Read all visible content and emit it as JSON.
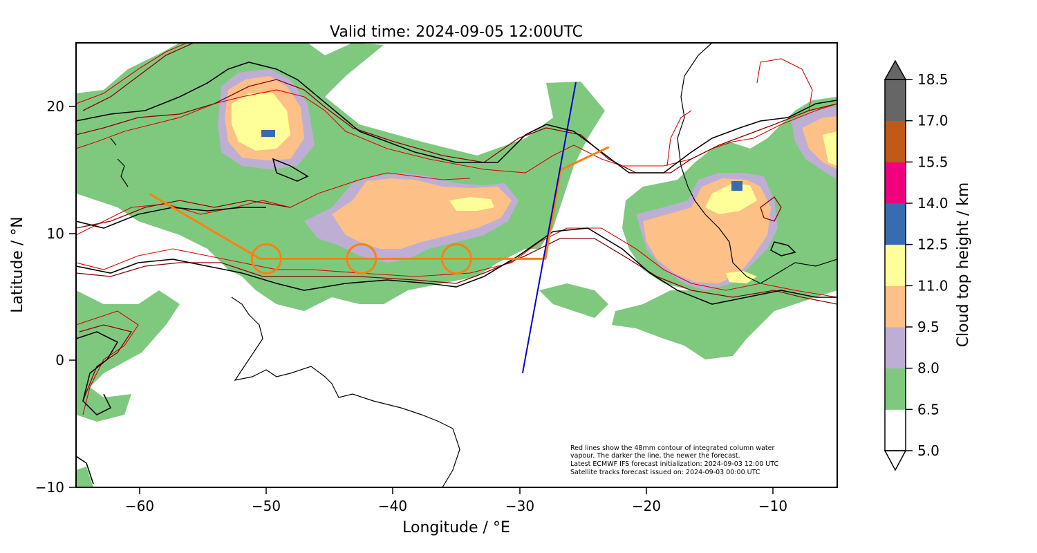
{
  "title": "Valid time: 2024-09-05 12:00UTC",
  "x_axis": {
    "label": "Longitude / °E",
    "range": [
      -65,
      -5
    ],
    "ticks": [
      -60,
      -50,
      -40,
      -30,
      -20,
      -10
    ],
    "tick_labels": [
      "−60",
      "−50",
      "−40",
      "−30",
      "−20",
      "−10"
    ]
  },
  "y_axis": {
    "label": "Latitude / °N",
    "range": [
      -10,
      25
    ],
    "ticks": [
      -10,
      0,
      10,
      20
    ],
    "tick_labels": [
      "−10",
      "0",
      "10",
      "20"
    ]
  },
  "colorbar": {
    "label": "Cloud top height / km",
    "levels": [
      "5.0",
      "6.5",
      "8.0",
      "9.5",
      "11.0",
      "12.5",
      "14.0",
      "15.5",
      "17.0",
      "18.5"
    ],
    "colors": [
      "#ffffff",
      "#7fc97f",
      "#beaed4",
      "#fdc086",
      "#ffff99",
      "#386cb0",
      "#f0027f",
      "#bf5b17",
      "#666666"
    ],
    "extend": "both"
  },
  "annotation": [
    "Red lines show the 48mm contour of integrated column water",
    "vapour. The darker the line, the newer the forecast.",
    "Latest ECMWF IFS forecast initialization: 2024-09-03 12:00 UTC",
    "Satellite tracks forecast issued on: 2024-09-03 00:00 UTC"
  ],
  "flight_track": {
    "color": "#ff7f0e",
    "path": [
      [
        -59.2,
        13.1
      ],
      [
        -50.5,
        8.0
      ],
      [
        -28.0,
        8.0
      ],
      [
        -26.8,
        15.0
      ],
      [
        -23.0,
        16.8
      ]
    ],
    "circles": [
      [
        -50.0,
        8.0
      ],
      [
        -42.5,
        8.0
      ],
      [
        -35.0,
        8.0
      ]
    ]
  },
  "satellite_track": {
    "color": "#0000cc",
    "path": [
      [
        -29.8,
        -1.0
      ],
      [
        -25.6,
        21.9
      ]
    ]
  }
}
